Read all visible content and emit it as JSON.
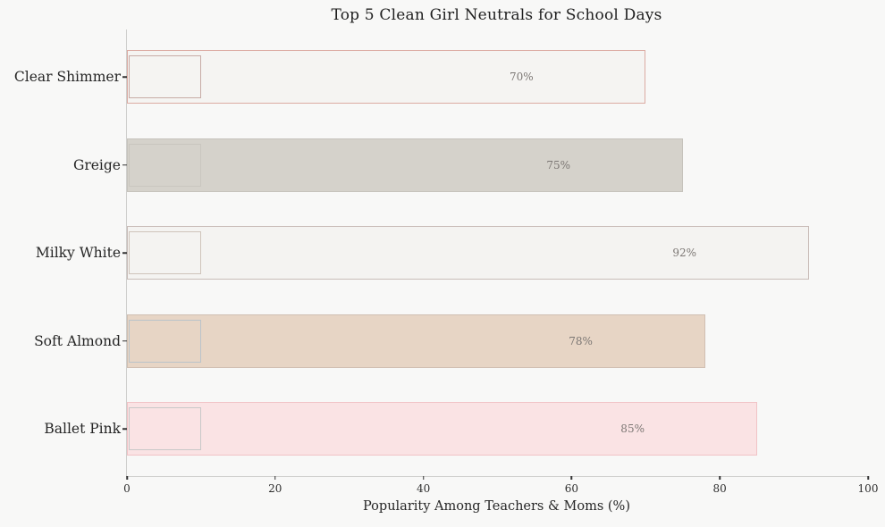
{
  "chart_data": {
    "type": "bar",
    "orientation": "horizontal",
    "title": "Top 5 Clean Girl Neutrals for School Days",
    "xlabel": "Popularity Among Teachers & Moms (%)",
    "xlim": [
      0,
      100
    ],
    "xticks": [
      "0",
      "20",
      "40",
      "60",
      "80",
      "100"
    ],
    "grid": false,
    "legend": false,
    "categories": [
      "Clear Shimmer",
      "Greige",
      "Milky White",
      "Soft Almond",
      "Ballet Pink"
    ],
    "values": [
      70,
      75,
      92,
      78,
      85
    ],
    "value_labels": [
      "70%",
      "75%",
      "92%",
      "78%",
      "85%"
    ],
    "bar_fills": [
      "#f5f4f2",
      "#d5d2cb",
      "#f4f3f1",
      "#e7d5c5",
      "#fae3e4"
    ],
    "bar_borders": [
      "#dcaba3",
      "#c6c3bc",
      "#c9bcb8",
      "#d0bfb2",
      "#f1c3c6"
    ],
    "swatch_borders": [
      "#c7aca6",
      "#c9c6bf",
      "#cfc4ba",
      "#bac3ca",
      "#c8c8c8"
    ],
    "textured": [
      false,
      false,
      true,
      false,
      true
    ],
    "background_color": "#f8f8f7",
    "value_label_color": "#7c7774"
  }
}
